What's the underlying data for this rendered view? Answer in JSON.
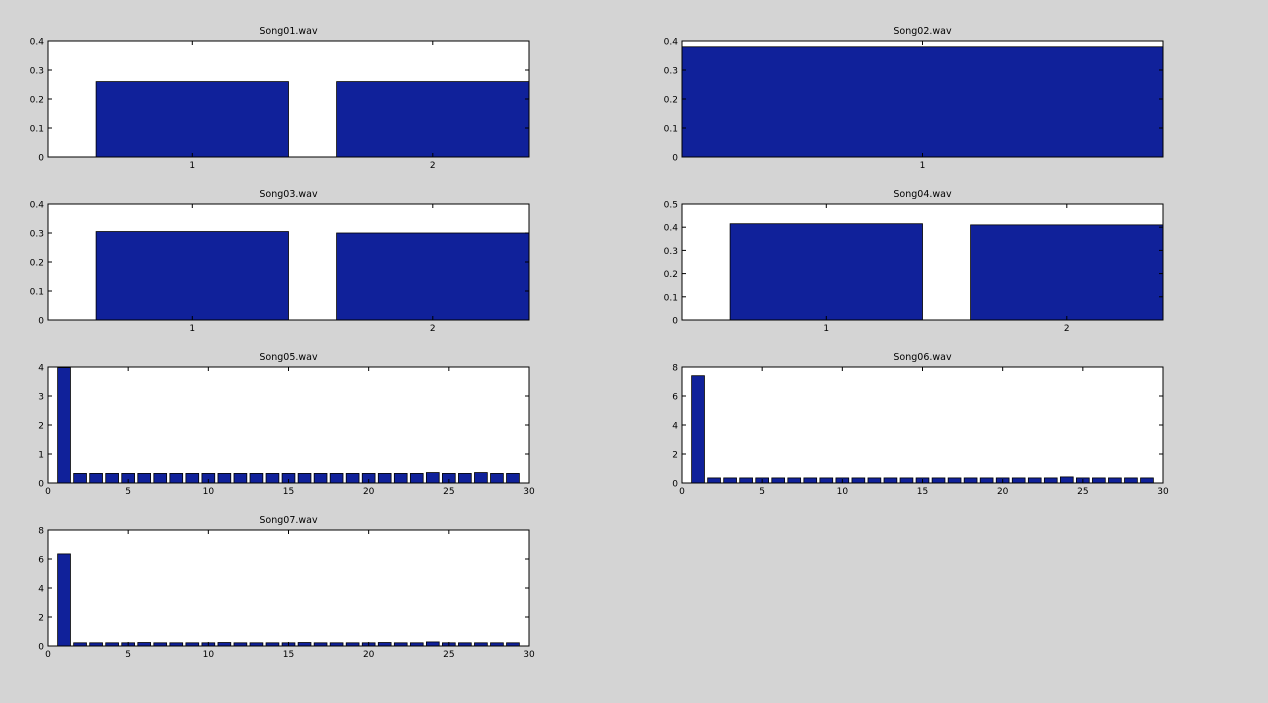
{
  "figure": {
    "background": "#d4d4d4",
    "bar_color": "#10219a",
    "axes_color": "#ffffff"
  },
  "chart_data": [
    {
      "type": "bar",
      "title": "Song01.wav",
      "categories": [
        1,
        2
      ],
      "values": [
        0.26,
        0.26
      ],
      "xlim": [
        0.4,
        2.4
      ],
      "ylim": [
        0,
        0.4
      ],
      "xticks": [
        1,
        2
      ],
      "yticks": [
        0,
        0.1,
        0.2,
        0.3,
        0.4
      ],
      "bar_width": 0.8,
      "grid": false
    },
    {
      "type": "bar",
      "title": "Song02.wav",
      "categories": [
        1
      ],
      "values": [
        0.38
      ],
      "xlim": [
        0.6,
        1.4
      ],
      "ylim": [
        0,
        0.4
      ],
      "xticks": [
        1
      ],
      "yticks": [
        0,
        0.1,
        0.2,
        0.3,
        0.4
      ],
      "bar_width": 0.8,
      "grid": false
    },
    {
      "type": "bar",
      "title": "Song03.wav",
      "categories": [
        1,
        2
      ],
      "values": [
        0.305,
        0.3
      ],
      "xlim": [
        0.4,
        2.4
      ],
      "ylim": [
        0,
        0.4
      ],
      "xticks": [
        1,
        2
      ],
      "yticks": [
        0,
        0.1,
        0.2,
        0.3,
        0.4
      ],
      "bar_width": 0.8,
      "grid": false
    },
    {
      "type": "bar",
      "title": "Song04.wav",
      "categories": [
        1,
        2
      ],
      "values": [
        0.415,
        0.41
      ],
      "xlim": [
        0.4,
        2.4
      ],
      "ylim": [
        0,
        0.5
      ],
      "xticks": [
        1,
        2
      ],
      "yticks": [
        0,
        0.1,
        0.2,
        0.3,
        0.4,
        0.5
      ],
      "bar_width": 0.8,
      "grid": false
    },
    {
      "type": "bar",
      "title": "Song05.wav",
      "categories": [
        1,
        2,
        3,
        4,
        5,
        6,
        7,
        8,
        9,
        10,
        11,
        12,
        13,
        14,
        15,
        16,
        17,
        18,
        19,
        20,
        21,
        22,
        23,
        24,
        25,
        26,
        27,
        28,
        29
      ],
      "values": [
        3.98,
        0.33,
        0.33,
        0.33,
        0.33,
        0.33,
        0.33,
        0.33,
        0.33,
        0.33,
        0.33,
        0.33,
        0.33,
        0.33,
        0.33,
        0.33,
        0.33,
        0.33,
        0.33,
        0.33,
        0.33,
        0.33,
        0.33,
        0.36,
        0.33,
        0.33,
        0.36,
        0.33,
        0.33
      ],
      "xlim": [
        0,
        30
      ],
      "ylim": [
        0,
        4
      ],
      "xticks": [
        0,
        5,
        10,
        15,
        20,
        25,
        30
      ],
      "yticks": [
        0,
        1,
        2,
        3,
        4
      ],
      "bar_width": 0.8,
      "grid": false
    },
    {
      "type": "bar",
      "title": "Song06.wav",
      "categories": [
        1,
        2,
        3,
        4,
        5,
        6,
        7,
        8,
        9,
        10,
        11,
        12,
        13,
        14,
        15,
        16,
        17,
        18,
        19,
        20,
        21,
        22,
        23,
        24,
        25,
        26,
        27,
        28,
        29
      ],
      "values": [
        7.4,
        0.35,
        0.35,
        0.35,
        0.35,
        0.35,
        0.35,
        0.35,
        0.35,
        0.35,
        0.35,
        0.35,
        0.35,
        0.35,
        0.35,
        0.35,
        0.35,
        0.35,
        0.35,
        0.35,
        0.35,
        0.35,
        0.35,
        0.42,
        0.35,
        0.35,
        0.35,
        0.35,
        0.35
      ],
      "xlim": [
        0,
        30
      ],
      "ylim": [
        0,
        8
      ],
      "xticks": [
        0,
        5,
        10,
        15,
        20,
        25,
        30
      ],
      "yticks": [
        0,
        2,
        4,
        6,
        8
      ],
      "bar_width": 0.8,
      "grid": false
    },
    {
      "type": "bar",
      "title": "Song07.wav",
      "categories": [
        1,
        2,
        3,
        4,
        5,
        6,
        7,
        8,
        9,
        10,
        11,
        12,
        13,
        14,
        15,
        16,
        17,
        18,
        19,
        20,
        21,
        22,
        23,
        24,
        25,
        26,
        27,
        28,
        29
      ],
      "values": [
        6.35,
        0.22,
        0.22,
        0.22,
        0.22,
        0.24,
        0.22,
        0.22,
        0.22,
        0.22,
        0.24,
        0.22,
        0.22,
        0.22,
        0.22,
        0.24,
        0.22,
        0.22,
        0.22,
        0.22,
        0.24,
        0.22,
        0.22,
        0.28,
        0.22,
        0.22,
        0.22,
        0.22,
        0.22
      ],
      "xlim": [
        0,
        30
      ],
      "ylim": [
        0,
        8
      ],
      "xticks": [
        0,
        5,
        10,
        15,
        20,
        25,
        30
      ],
      "yticks": [
        0,
        2,
        4,
        6,
        8
      ],
      "bar_width": 0.8,
      "grid": false
    }
  ]
}
